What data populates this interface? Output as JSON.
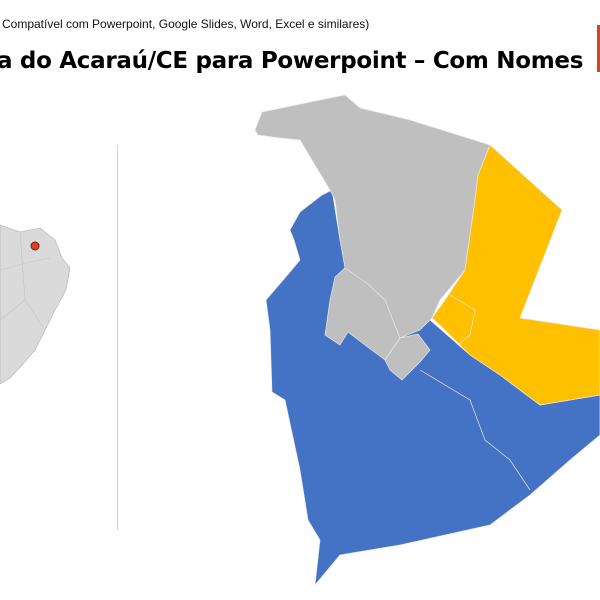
{
  "header": {
    "subtitle": "Compatível com Powerpoint, Google Slides, Word, Excel e similares)",
    "title": "a do Acaraú/CE para Powerpoint – Com Nomes"
  },
  "colors": {
    "accent": "#d24726",
    "region_gray": "#bfbfbf",
    "region_blue": "#4472c4",
    "region_yellow": "#ffc000",
    "brazil_fill": "#d9d9d9",
    "locator_dot": "#e04020"
  },
  "locator_map": {
    "icon": "brazil-locator-map",
    "marker": "red-dot"
  }
}
